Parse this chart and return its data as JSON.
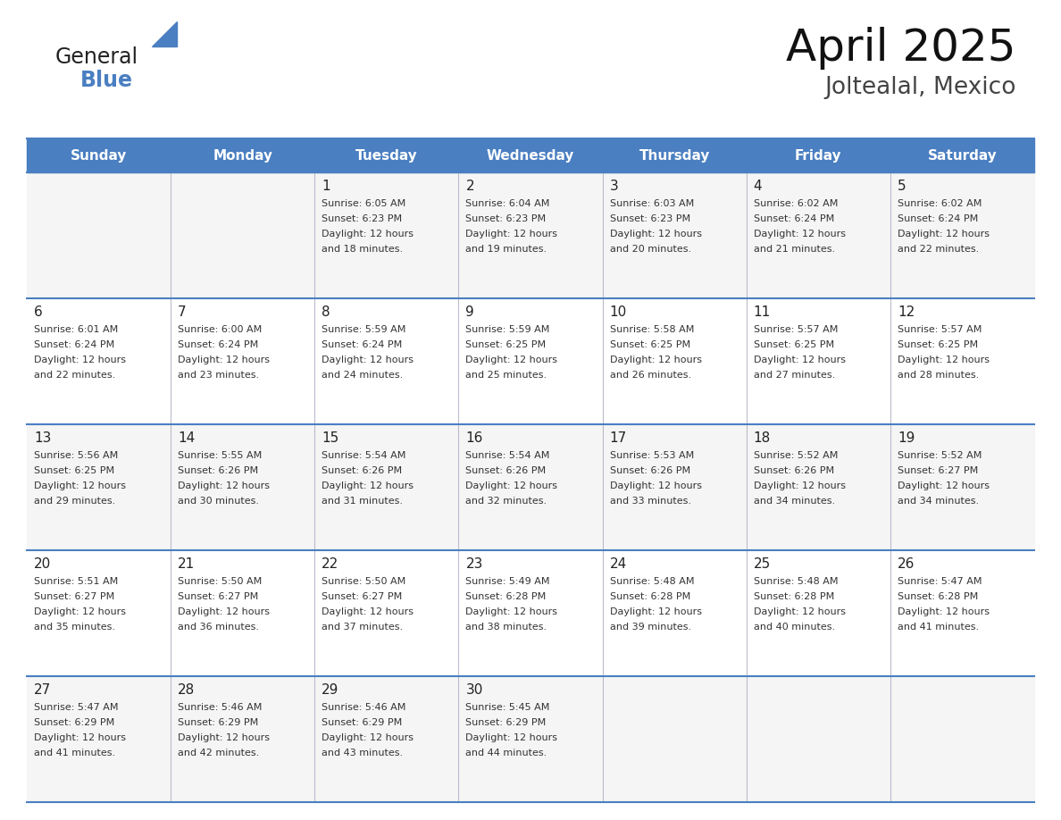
{
  "title": "April 2025",
  "subtitle": "Joltealal, Mexico",
  "header_color": "#4a7fc1",
  "header_text_color": "#FFFFFF",
  "days_of_week": [
    "Sunday",
    "Monday",
    "Tuesday",
    "Wednesday",
    "Thursday",
    "Friday",
    "Saturday"
  ],
  "bg_color": "#FFFFFF",
  "row0_color": "#F5F5F5",
  "row1_color": "#FFFFFF",
  "cell_text_color": "#333333",
  "border_color": "#4a7fc1",
  "line_color": "#AAAACC",
  "logo_general_color": "#222222",
  "logo_blue_color": "#4a7fc1",
  "logo_triangle_color": "#4a7fc1",
  "title_color": "#111111",
  "subtitle_color": "#444444",
  "calendar": [
    [
      {
        "day": null,
        "sunrise": null,
        "sunset": null,
        "daylight": null
      },
      {
        "day": null,
        "sunrise": null,
        "sunset": null,
        "daylight": null
      },
      {
        "day": 1,
        "sunrise": "6:05 AM",
        "sunset": "6:23 PM",
        "daylight": "12 hours and 18 minutes."
      },
      {
        "day": 2,
        "sunrise": "6:04 AM",
        "sunset": "6:23 PM",
        "daylight": "12 hours and 19 minutes."
      },
      {
        "day": 3,
        "sunrise": "6:03 AM",
        "sunset": "6:23 PM",
        "daylight": "12 hours and 20 minutes."
      },
      {
        "day": 4,
        "sunrise": "6:02 AM",
        "sunset": "6:24 PM",
        "daylight": "12 hours and 21 minutes."
      },
      {
        "day": 5,
        "sunrise": "6:02 AM",
        "sunset": "6:24 PM",
        "daylight": "12 hours and 22 minutes."
      }
    ],
    [
      {
        "day": 6,
        "sunrise": "6:01 AM",
        "sunset": "6:24 PM",
        "daylight": "12 hours and 22 minutes."
      },
      {
        "day": 7,
        "sunrise": "6:00 AM",
        "sunset": "6:24 PM",
        "daylight": "12 hours and 23 minutes."
      },
      {
        "day": 8,
        "sunrise": "5:59 AM",
        "sunset": "6:24 PM",
        "daylight": "12 hours and 24 minutes."
      },
      {
        "day": 9,
        "sunrise": "5:59 AM",
        "sunset": "6:25 PM",
        "daylight": "12 hours and 25 minutes."
      },
      {
        "day": 10,
        "sunrise": "5:58 AM",
        "sunset": "6:25 PM",
        "daylight": "12 hours and 26 minutes."
      },
      {
        "day": 11,
        "sunrise": "5:57 AM",
        "sunset": "6:25 PM",
        "daylight": "12 hours and 27 minutes."
      },
      {
        "day": 12,
        "sunrise": "5:57 AM",
        "sunset": "6:25 PM",
        "daylight": "12 hours and 28 minutes."
      }
    ],
    [
      {
        "day": 13,
        "sunrise": "5:56 AM",
        "sunset": "6:25 PM",
        "daylight": "12 hours and 29 minutes."
      },
      {
        "day": 14,
        "sunrise": "5:55 AM",
        "sunset": "6:26 PM",
        "daylight": "12 hours and 30 minutes."
      },
      {
        "day": 15,
        "sunrise": "5:54 AM",
        "sunset": "6:26 PM",
        "daylight": "12 hours and 31 minutes."
      },
      {
        "day": 16,
        "sunrise": "5:54 AM",
        "sunset": "6:26 PM",
        "daylight": "12 hours and 32 minutes."
      },
      {
        "day": 17,
        "sunrise": "5:53 AM",
        "sunset": "6:26 PM",
        "daylight": "12 hours and 33 minutes."
      },
      {
        "day": 18,
        "sunrise": "5:52 AM",
        "sunset": "6:26 PM",
        "daylight": "12 hours and 34 minutes."
      },
      {
        "day": 19,
        "sunrise": "5:52 AM",
        "sunset": "6:27 PM",
        "daylight": "12 hours and 34 minutes."
      }
    ],
    [
      {
        "day": 20,
        "sunrise": "5:51 AM",
        "sunset": "6:27 PM",
        "daylight": "12 hours and 35 minutes."
      },
      {
        "day": 21,
        "sunrise": "5:50 AM",
        "sunset": "6:27 PM",
        "daylight": "12 hours and 36 minutes."
      },
      {
        "day": 22,
        "sunrise": "5:50 AM",
        "sunset": "6:27 PM",
        "daylight": "12 hours and 37 minutes."
      },
      {
        "day": 23,
        "sunrise": "5:49 AM",
        "sunset": "6:28 PM",
        "daylight": "12 hours and 38 minutes."
      },
      {
        "day": 24,
        "sunrise": "5:48 AM",
        "sunset": "6:28 PM",
        "daylight": "12 hours and 39 minutes."
      },
      {
        "day": 25,
        "sunrise": "5:48 AM",
        "sunset": "6:28 PM",
        "daylight": "12 hours and 40 minutes."
      },
      {
        "day": 26,
        "sunrise": "5:47 AM",
        "sunset": "6:28 PM",
        "daylight": "12 hours and 41 minutes."
      }
    ],
    [
      {
        "day": 27,
        "sunrise": "5:47 AM",
        "sunset": "6:29 PM",
        "daylight": "12 hours and 41 minutes."
      },
      {
        "day": 28,
        "sunrise": "5:46 AM",
        "sunset": "6:29 PM",
        "daylight": "12 hours and 42 minutes."
      },
      {
        "day": 29,
        "sunrise": "5:46 AM",
        "sunset": "6:29 PM",
        "daylight": "12 hours and 43 minutes."
      },
      {
        "day": 30,
        "sunrise": "5:45 AM",
        "sunset": "6:29 PM",
        "daylight": "12 hours and 44 minutes."
      },
      {
        "day": null,
        "sunrise": null,
        "sunset": null,
        "daylight": null
      },
      {
        "day": null,
        "sunrise": null,
        "sunset": null,
        "daylight": null
      },
      {
        "day": null,
        "sunrise": null,
        "sunset": null,
        "daylight": null
      }
    ]
  ]
}
